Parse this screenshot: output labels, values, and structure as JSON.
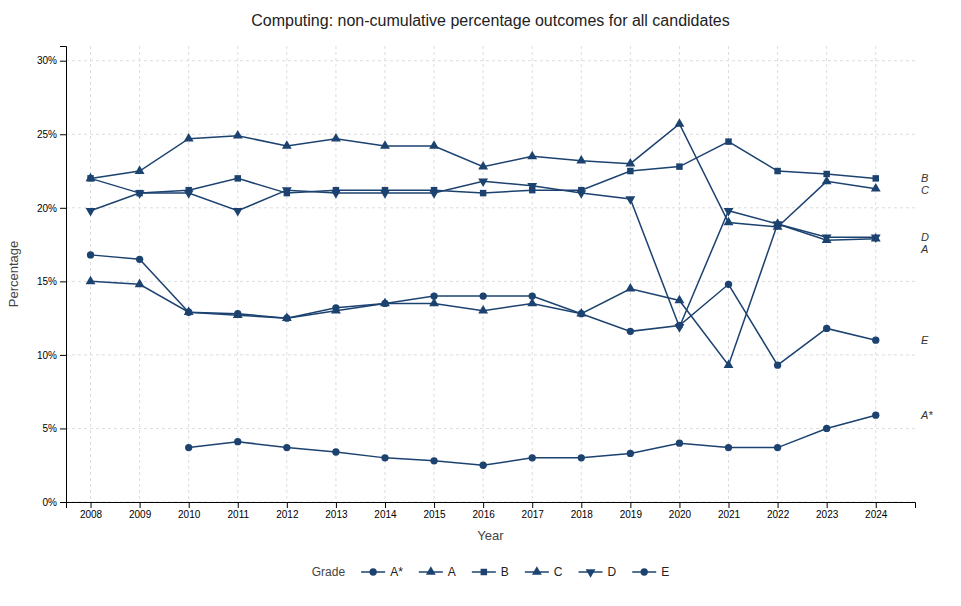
{
  "chart_data": {
    "type": "line",
    "title": "Computing: non-cumulative percentage outcomes for all candidates",
    "x_label": "Year",
    "y_label": "Percentage",
    "legend_title": "Grade",
    "legend": "bottom",
    "grid": true,
    "x": [
      2008,
      2009,
      2010,
      2011,
      2012,
      2013,
      2014,
      2015,
      2016,
      2017,
      2018,
      2019,
      2020,
      2021,
      2022,
      2023,
      2024
    ],
    "xlim": [
      2007.5,
      2024.8
    ],
    "xticks": [
      2008,
      2009,
      2010,
      2011,
      2012,
      2013,
      2014,
      2015,
      2016,
      2017,
      2018,
      2019,
      2020,
      2021,
      2022,
      2023,
      2024
    ],
    "ylim": [
      0,
      31
    ],
    "yticks": [
      {
        "value": 0,
        "label": "0%"
      },
      {
        "value": 5,
        "label": "5%"
      },
      {
        "value": 10,
        "label": "10%"
      },
      {
        "value": 15,
        "label": "15%"
      },
      {
        "value": 20,
        "label": "20%"
      },
      {
        "value": 25,
        "label": "25%"
      },
      {
        "value": 30,
        "label": "30%"
      }
    ],
    "series": [
      {
        "name": "A*",
        "color": "#1c4270",
        "marker": "circle",
        "values": [
          null,
          null,
          3.7,
          4.1,
          3.7,
          3.4,
          3.0,
          2.8,
          2.5,
          3.0,
          3.0,
          3.3,
          4.0,
          3.7,
          3.7,
          5.0,
          5.9
        ]
      },
      {
        "name": "A",
        "color": "#1c4270",
        "marker": "triangle",
        "values": [
          15.0,
          14.8,
          12.9,
          12.7,
          12.5,
          13.0,
          13.5,
          13.5,
          13.0,
          13.5,
          12.8,
          14.5,
          13.7,
          9.3,
          18.9,
          17.8,
          17.9
        ]
      },
      {
        "name": "B",
        "color": "#1c4270",
        "marker": "square",
        "values": [
          22.0,
          21.0,
          21.2,
          22.0,
          21.0,
          21.2,
          21.2,
          21.2,
          21.0,
          21.2,
          21.2,
          22.5,
          22.8,
          24.5,
          22.5,
          22.3,
          22.0
        ]
      },
      {
        "name": "C",
        "color": "#1c4270",
        "marker": "triangle",
        "values": [
          22.0,
          22.5,
          24.7,
          24.9,
          24.2,
          24.7,
          24.2,
          24.2,
          22.8,
          23.5,
          23.2,
          23.0,
          25.7,
          19.0,
          18.7,
          21.8,
          21.3
        ]
      },
      {
        "name": "D",
        "color": "#1c4270",
        "marker": "triangle-down",
        "values": [
          19.8,
          21.0,
          21.0,
          19.8,
          21.2,
          21.0,
          21.0,
          21.0,
          21.8,
          21.5,
          21.0,
          20.6,
          11.9,
          19.8,
          18.9,
          18.0,
          18.0
        ]
      },
      {
        "name": "E",
        "color": "#1c4270",
        "marker": "circle",
        "values": [
          16.8,
          16.5,
          12.9,
          12.8,
          12.5,
          13.2,
          13.5,
          14.0,
          14.0,
          14.0,
          12.8,
          11.6,
          12.0,
          14.8,
          9.3,
          11.8,
          11.0
        ]
      }
    ],
    "annotations": [
      {
        "text": "B",
        "y": 22.0
      },
      {
        "text": "C",
        "y": 21.3
      },
      {
        "text": "A",
        "y": 17.9
      },
      {
        "text": "D",
        "y": 18.0
      },
      {
        "text": "E",
        "y": 11.0
      },
      {
        "text": "A*",
        "y": 5.9
      }
    ]
  }
}
